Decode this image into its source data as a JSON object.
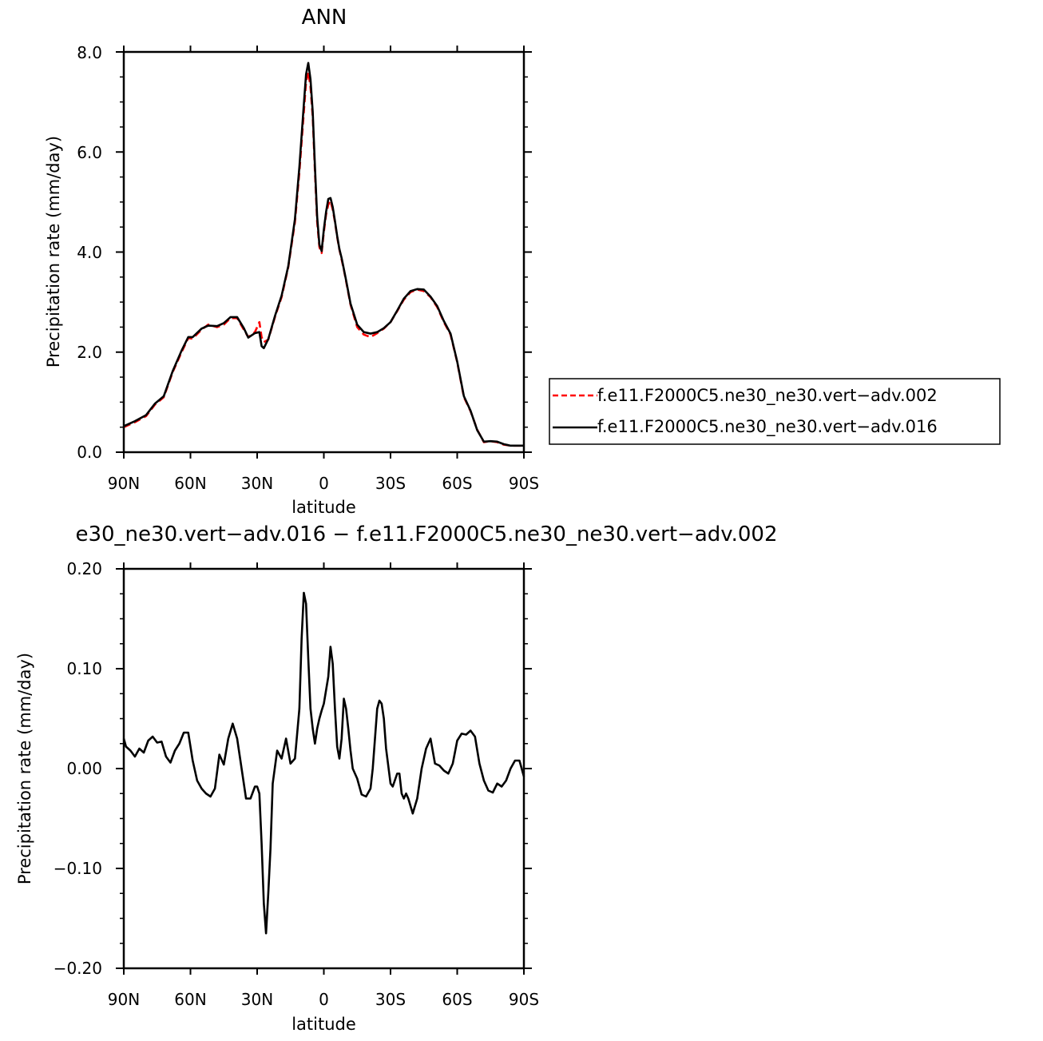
{
  "chart_data": [
    {
      "type": "line",
      "title": "ANN",
      "xlabel": "latitude",
      "ylabel": "Precipitation rate (mm/day)",
      "xlim": [
        90,
        -90
      ],
      "ylim": [
        0,
        8
      ],
      "xticks": [
        90,
        60,
        30,
        0,
        -30,
        -60,
        -90
      ],
      "xtick_labels": [
        "90N",
        "60N",
        "30N",
        "0",
        "30S",
        "60S",
        "90S"
      ],
      "yticks": [
        0,
        2,
        4,
        6,
        8
      ],
      "ytick_labels": [
        "0.0",
        "2.0",
        "4.0",
        "6.0",
        "8.0"
      ],
      "grid": false,
      "legend_position": "right",
      "series": [
        {
          "name": "f.e11.F2000C5.ne30_ne30.vert−adv.002",
          "color": "#ff0000",
          "style": "dashed",
          "x": [
            90,
            85,
            80,
            76,
            72,
            68,
            64,
            61,
            59,
            55,
            52,
            48,
            45,
            42,
            39,
            36,
            34,
            31,
            29,
            28,
            27,
            25,
            22,
            19,
            16,
            13,
            11,
            9,
            8,
            7,
            6,
            5,
            4,
            3,
            2,
            1,
            0,
            -1,
            -2,
            -3,
            -4,
            -5,
            -6,
            -7,
            -8,
            -9,
            -10,
            -12,
            -15,
            -18,
            -21,
            -24,
            -27,
            -30,
            -33,
            -36,
            -39,
            -42,
            -45,
            -48,
            -51,
            -54,
            -57,
            -60,
            -63,
            -66,
            -69,
            -72,
            -75,
            -78,
            -81,
            -84,
            -86,
            -88,
            -90
          ],
          "y": [
            0.5,
            0.6,
            0.72,
            0.95,
            1.1,
            1.6,
            2.0,
            2.28,
            2.27,
            2.45,
            2.55,
            2.5,
            2.55,
            2.68,
            2.68,
            2.45,
            2.3,
            2.4,
            2.6,
            2.3,
            2.2,
            2.25,
            2.7,
            3.1,
            3.7,
            4.6,
            5.6,
            6.8,
            7.4,
            7.6,
            7.3,
            6.7,
            5.6,
            4.6,
            4.1,
            3.98,
            4.4,
            4.75,
            4.95,
            5.02,
            4.85,
            4.6,
            4.3,
            4.05,
            3.85,
            3.65,
            3.42,
            2.95,
            2.5,
            2.35,
            2.3,
            2.38,
            2.47,
            2.6,
            2.82,
            3.05,
            3.2,
            3.25,
            3.22,
            3.1,
            2.9,
            2.6,
            2.35,
            1.8,
            1.1,
            0.82,
            0.45,
            0.2,
            0.22,
            0.2,
            0.15,
            0.13,
            0.13,
            0.13,
            0.13
          ]
        },
        {
          "name": "f.e11.F2000C5.ne30_ne30.vert−adv.016",
          "color": "#000000",
          "style": "solid",
          "x": [
            90,
            85,
            80,
            76,
            72,
            68,
            64,
            61,
            59,
            55,
            52,
            48,
            45,
            42,
            39,
            36,
            34,
            31,
            29,
            28,
            27,
            25,
            22,
            19,
            16,
            13,
            11,
            9,
            8,
            7,
            6,
            5,
            4,
            3,
            2,
            1,
            0,
            -1,
            -2,
            -3,
            -4,
            -5,
            -6,
            -7,
            -8,
            -9,
            -10,
            -12,
            -15,
            -18,
            -21,
            -24,
            -27,
            -30,
            -33,
            -36,
            -39,
            -42,
            -45,
            -48,
            -51,
            -54,
            -57,
            -60,
            -63,
            -66,
            -69,
            -72,
            -75,
            -78,
            -81,
            -84,
            -86,
            -88,
            -90
          ],
          "y": [
            0.52,
            0.62,
            0.74,
            0.97,
            1.12,
            1.62,
            2.03,
            2.3,
            2.3,
            2.47,
            2.53,
            2.52,
            2.58,
            2.7,
            2.7,
            2.48,
            2.29,
            2.38,
            2.4,
            2.12,
            2.08,
            2.26,
            2.72,
            3.13,
            3.72,
            4.66,
            5.7,
            6.95,
            7.55,
            7.78,
            7.45,
            6.8,
            5.7,
            4.7,
            4.15,
            4.02,
            4.45,
            4.8,
            5.06,
            5.08,
            4.9,
            4.62,
            4.32,
            4.06,
            3.88,
            3.66,
            3.44,
            2.97,
            2.55,
            2.4,
            2.37,
            2.4,
            2.48,
            2.6,
            2.83,
            3.07,
            3.22,
            3.26,
            3.25,
            3.11,
            2.92,
            2.62,
            2.37,
            1.81,
            1.12,
            0.83,
            0.44,
            0.21,
            0.22,
            0.21,
            0.16,
            0.13,
            0.13,
            0.13,
            0.13
          ]
        }
      ]
    },
    {
      "type": "line",
      "title": "e30_ne30.vert−adv.016 − f.e11.F2000C5.ne30_ne30.vert−adv.002",
      "xlabel": "latitude",
      "ylabel": "Precipitation rate (mm/day)",
      "xlim": [
        90,
        -90
      ],
      "ylim": [
        -0.2,
        0.2
      ],
      "xticks": [
        90,
        60,
        30,
        0,
        -30,
        -60,
        -90
      ],
      "xtick_labels": [
        "90N",
        "60N",
        "30N",
        "0",
        "30S",
        "60S",
        "90S"
      ],
      "yticks": [
        -0.2,
        -0.1,
        0,
        0.1,
        0.2
      ],
      "ytick_labels": [
        "−0.20",
        "−0.10",
        "0.00",
        "0.10",
        "0.20"
      ],
      "grid": false,
      "series": [
        {
          "color": "#000000",
          "style": "solid",
          "x": [
            90,
            89,
            87,
            85,
            83,
            81,
            79,
            77,
            75,
            73,
            71,
            69,
            67,
            65,
            63,
            61,
            59,
            57,
            55,
            53,
            51,
            49,
            47,
            45,
            43,
            41,
            39,
            37,
            35,
            33,
            31,
            30,
            29,
            28,
            27,
            26,
            25,
            24,
            23,
            21,
            19,
            17,
            15,
            13,
            11,
            10,
            9,
            8,
            7,
            6,
            5,
            4,
            3,
            2,
            1,
            0,
            -2,
            -3,
            -4,
            -5,
            -6,
            -7,
            -8,
            -9,
            -10,
            -11,
            -12,
            -13,
            -15,
            -17,
            -19,
            -21,
            -22,
            -23,
            -24,
            -25,
            -26,
            -27,
            -28,
            -30,
            -31,
            -33,
            -34,
            -35,
            -36,
            -37,
            -38,
            -40,
            -42,
            -44,
            -46,
            -48,
            -50,
            -52,
            -54,
            -56,
            -58,
            -60,
            -62,
            -64,
            -66,
            -68,
            -70,
            -72,
            -74,
            -76,
            -78,
            -80,
            -82,
            -84,
            -86,
            -88,
            -90
          ],
          "y": [
            0.03,
            0.022,
            0.018,
            0.012,
            0.02,
            0.016,
            0.028,
            0.032,
            0.026,
            0.027,
            0.012,
            0.006,
            0.018,
            0.025,
            0.036,
            0.036,
            0.008,
            -0.012,
            -0.02,
            -0.025,
            -0.028,
            -0.02,
            0.014,
            0.004,
            0.03,
            0.045,
            0.03,
            0.0,
            -0.03,
            -0.03,
            -0.018,
            -0.018,
            -0.025,
            -0.075,
            -0.135,
            -0.165,
            -0.125,
            -0.08,
            -0.015,
            0.018,
            0.01,
            0.03,
            0.005,
            0.01,
            0.06,
            0.13,
            0.176,
            0.165,
            0.11,
            0.06,
            0.04,
            0.025,
            0.04,
            0.05,
            0.058,
            0.065,
            0.092,
            0.122,
            0.105,
            0.06,
            0.022,
            0.01,
            0.03,
            0.07,
            0.06,
            0.04,
            0.018,
            0.0,
            -0.01,
            -0.026,
            -0.028,
            -0.02,
            0.0,
            0.03,
            0.06,
            0.068,
            0.065,
            0.05,
            0.02,
            -0.015,
            -0.018,
            -0.005,
            -0.005,
            -0.025,
            -0.03,
            -0.025,
            -0.03,
            -0.045,
            -0.03,
            0.0,
            0.02,
            0.03,
            0.005,
            0.003,
            -0.002,
            -0.005,
            0.005,
            0.028,
            0.035,
            0.034,
            0.038,
            0.032,
            0.005,
            -0.012,
            -0.022,
            -0.024,
            -0.015,
            -0.018,
            -0.012,
            0.0,
            0.008,
            0.008,
            -0.008
          ]
        }
      ]
    }
  ]
}
